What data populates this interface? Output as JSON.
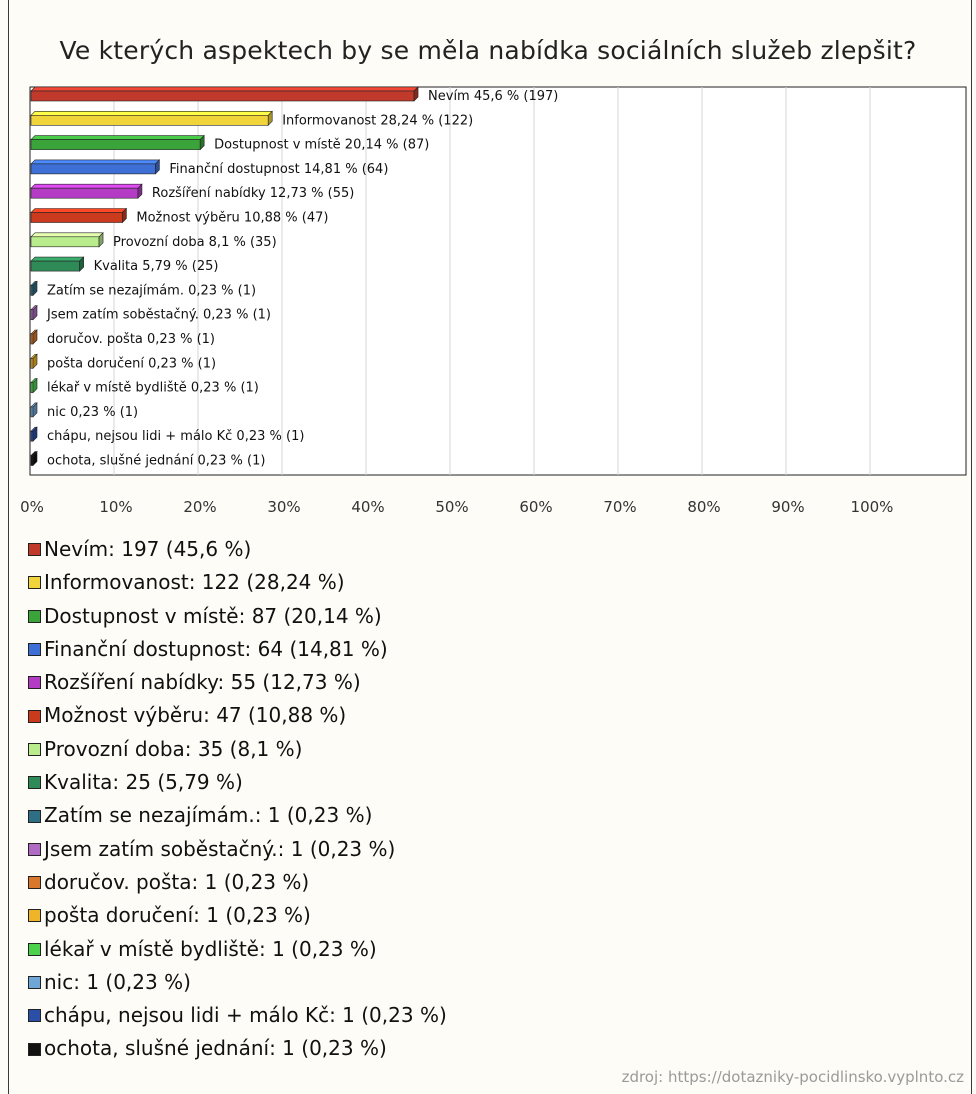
{
  "chart_data": {
    "type": "bar",
    "orientation": "horizontal",
    "title": "Ve kterých aspektech by se měla nabídka sociálních služeb zlepšit?",
    "xlabel": "",
    "ylabel": "",
    "xlim": [
      0,
      100
    ],
    "x_unit": "%",
    "grid": true,
    "x_ticks": [
      "0%",
      "10%",
      "20%",
      "30%",
      "40%",
      "50%",
      "60%",
      "70%",
      "80%",
      "90%",
      "100%"
    ],
    "bars": [
      {
        "label": "Nevím",
        "percent": 45.6,
        "count": 197,
        "color": "#c0392b",
        "bar_label": "Nevím 45,6 % (197)",
        "legend_label": "Nevím: 197 (45,6 %)"
      },
      {
        "label": "Informovanost",
        "percent": 28.24,
        "count": 122,
        "color": "#f0d43a",
        "bar_label": "Informovanost 28,24 % (122)",
        "legend_label": "Informovanost: 122 (28,24 %)"
      },
      {
        "label": "Dostupnost v místě",
        "percent": 20.14,
        "count": 87,
        "color": "#3aa43a",
        "bar_label": "Dostupnost v místě 20,14 % (87)",
        "legend_label": "Dostupnost v místě: 87 (20,14 %)"
      },
      {
        "label": "Finanční dostupnost",
        "percent": 14.81,
        "count": 64,
        "color": "#3d6fd6",
        "bar_label": "Finanční dostupnost 14,81 % (64)",
        "legend_label": "Finanční dostupnost: 64 (14,81 %)"
      },
      {
        "label": "Rozšíření nabídky",
        "percent": 12.73,
        "count": 55,
        "color": "#b43cc4",
        "bar_label": "Rozšíření nabídky 12,73 % (55)",
        "legend_label": "Rozšíření nabídky: 55 (12,73 %)"
      },
      {
        "label": "Možnost výběru",
        "percent": 10.88,
        "count": 47,
        "color": "#cc3a1e",
        "bar_label": "Možnost výběru 10,88 % (47)",
        "legend_label": "Možnost výběru: 47 (10,88 %)"
      },
      {
        "label": "Provozní doba",
        "percent": 8.1,
        "count": 35,
        "color": "#b8ec8c",
        "bar_label": "Provozní doba 8,1 % (35)",
        "legend_label": "Provozní doba: 35 (8,1 %)"
      },
      {
        "label": "Kvalita",
        "percent": 5.79,
        "count": 25,
        "color": "#2e8b57",
        "bar_label": "Kvalita 5,79 % (25)",
        "legend_label": "Kvalita: 25 (5,79 %)"
      },
      {
        "label": "Zatím se nezajímám.",
        "percent": 0.23,
        "count": 1,
        "color": "#2f6f86",
        "bar_label": "Zatím se nezajímám. 0,23 % (1)",
        "legend_label": "Zatím se nezajímám.: 1 (0,23 %)"
      },
      {
        "label": "Jsem zatím soběstačný.",
        "percent": 0.23,
        "count": 1,
        "color": "#b06ac4",
        "bar_label": "Jsem zatím soběstačný. 0,23 % (1)",
        "legend_label": "Jsem zatím soběstačný.: 1 (0,23 %)"
      },
      {
        "label": "doručov. pošta",
        "percent": 0.23,
        "count": 1,
        "color": "#d9772a",
        "bar_label": "doručov. pošta 0,23 % (1)",
        "legend_label": "doručov. pošta: 1 (0,23 %)"
      },
      {
        "label": "pošta doručení",
        "percent": 0.23,
        "count": 1,
        "color": "#f0b429",
        "bar_label": "pošta doručení 0,23 % (1)",
        "legend_label": "pošta doručení: 1 (0,23 %)"
      },
      {
        "label": "lékař v místě bydliště",
        "percent": 0.23,
        "count": 1,
        "color": "#4cd14c",
        "bar_label": "lékař v místě bydliště 0,23 % (1)",
        "legend_label": "lékař v místě bydliště: 1 (0,23 %)"
      },
      {
        "label": "nic",
        "percent": 0.23,
        "count": 1,
        "color": "#6ea6d8",
        "bar_label": "nic 0,23 % (1)",
        "legend_label": "nic: 1 (0,23 %)"
      },
      {
        "label": "chápu, nejsou lidi + málo Kč",
        "percent": 0.23,
        "count": 1,
        "color": "#2b4fa8",
        "bar_label": "chápu, nejsou lidi + málo Kč 0,23 % (1)",
        "legend_label": "chápu, nejsou lidi + málo Kč: 1 (0,23 %)"
      },
      {
        "label": "ochota, slušné jednání",
        "percent": 0.23,
        "count": 1,
        "color": "#111111",
        "bar_label": "ochota, slušné jednání 0,23 % (1)",
        "legend_label": "ochota, slušné jednání: 1 (0,23 %)"
      }
    ],
    "legend_position": "bottom-left"
  },
  "source": "zdroj: https://dotazniky-pocidlinsko.vyplnto.cz"
}
